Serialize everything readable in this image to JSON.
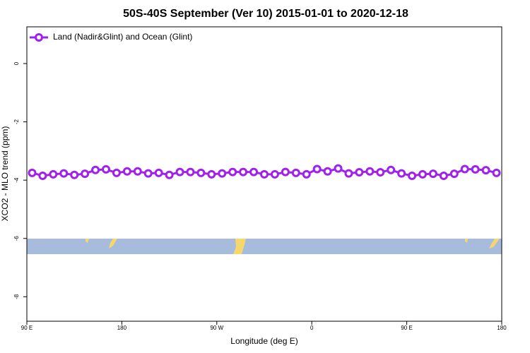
{
  "chart_data": {
    "type": "line",
    "title": "50S-40S September (Ver 10)   2015-01-01 to 2020-12-18",
    "x_label": "Longitude (deg E)",
    "y_label": "XCO2 - MLO trend (ppm)",
    "x": [
      95,
      105,
      115,
      125,
      135,
      145,
      155,
      165,
      175,
      185,
      195,
      205,
      215,
      225,
      235,
      245,
      255,
      265,
      275,
      285,
      295,
      305,
      315,
      325,
      335,
      345,
      355,
      365,
      375,
      385,
      395,
      405,
      415,
      425,
      435,
      445,
      455,
      465,
      475,
      485,
      495,
      505,
      515,
      525,
      535
    ],
    "series": [
      {
        "name": "Land (Nadir&Glint) and Ocean (Glint)",
        "color": "#a020f0",
        "values": [
          -3.75,
          -3.85,
          -3.8,
          -3.77,
          -3.82,
          -3.78,
          -3.65,
          -3.63,
          -3.75,
          -3.7,
          -3.7,
          -3.77,
          -3.75,
          -3.82,
          -3.72,
          -3.72,
          -3.75,
          -3.8,
          -3.77,
          -3.72,
          -3.72,
          -3.72,
          -3.8,
          -3.8,
          -3.72,
          -3.75,
          -3.8,
          -3.62,
          -3.7,
          -3.6,
          -3.77,
          -3.73,
          -3.7,
          -3.73,
          -3.65,
          -3.77,
          -3.85,
          -3.8,
          -3.78,
          -3.85,
          -3.78,
          -3.62,
          -3.63,
          -3.66,
          -3.75
        ]
      }
    ],
    "xlim": [
      90,
      540
    ],
    "xticks": [
      {
        "value": 90,
        "label": "90 E"
      },
      180,
      {
        "value": 270,
        "label": "90 W"
      },
      {
        "value": 360,
        "label": "0"
      },
      {
        "value": 450,
        "label": "90 E"
      },
      {
        "value": 540,
        "label": "180"
      }
    ],
    "ylim": [
      -8.84,
      1.26
    ],
    "yticks": [
      0,
      -2,
      -4,
      -6,
      -8
    ],
    "legend": "top-left"
  }
}
